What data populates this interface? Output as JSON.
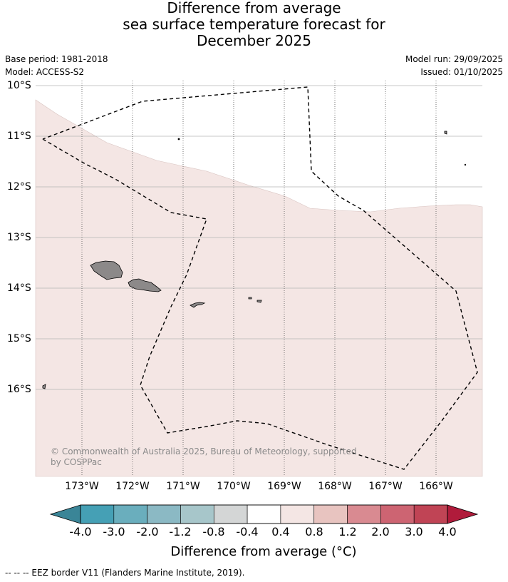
{
  "title": {
    "line1": "Difference from average",
    "line2": "sea surface temperature forecast for",
    "line3": "December 2025"
  },
  "meta": {
    "base_period": "Base period: 1981-2018",
    "model": "Model: ACCESS-S2",
    "model_run": "Model run: 29/09/2025",
    "issued": "Issued: 01/10/2025"
  },
  "map": {
    "lat_labels": [
      "10°S",
      "11°S",
      "12°S",
      "13°S",
      "14°S",
      "15°S",
      "16°S"
    ],
    "lon_labels": [
      "173°W",
      "172°W",
      "171°W",
      "170°W",
      "169°W",
      "168°W",
      "167°W",
      "166°W"
    ],
    "copyright": "© Commonwealth of Australia 2025, Bureau of Meteorology, supported by COSPPac",
    "anomaly_fill_color": "#f4e6e4",
    "land_color": "#8c8989"
  },
  "colorbar": {
    "ticks": [
      "-4.0",
      "-3.0",
      "-2.0",
      "-1.2",
      "-0.8",
      "-0.4",
      "0.4",
      "0.8",
      "1.2",
      "2.0",
      "3.0",
      "4.0"
    ],
    "colors": [
      "#45a0b5",
      "#6aaebd",
      "#8bb9c4",
      "#a7c6ca",
      "#d4d6d6",
      "#ffffff",
      "#f4e6e4",
      "#e8c4c0",
      "#d98a91",
      "#cd6472",
      "#c04455"
    ],
    "extend_low_color": "#3a8597",
    "extend_high_color": "#b01b3b",
    "label": "Difference from average (°C)"
  },
  "footer": {
    "legend": "-- -- -- EEZ border V11 (Flanders Marine Institute, 2019)."
  }
}
